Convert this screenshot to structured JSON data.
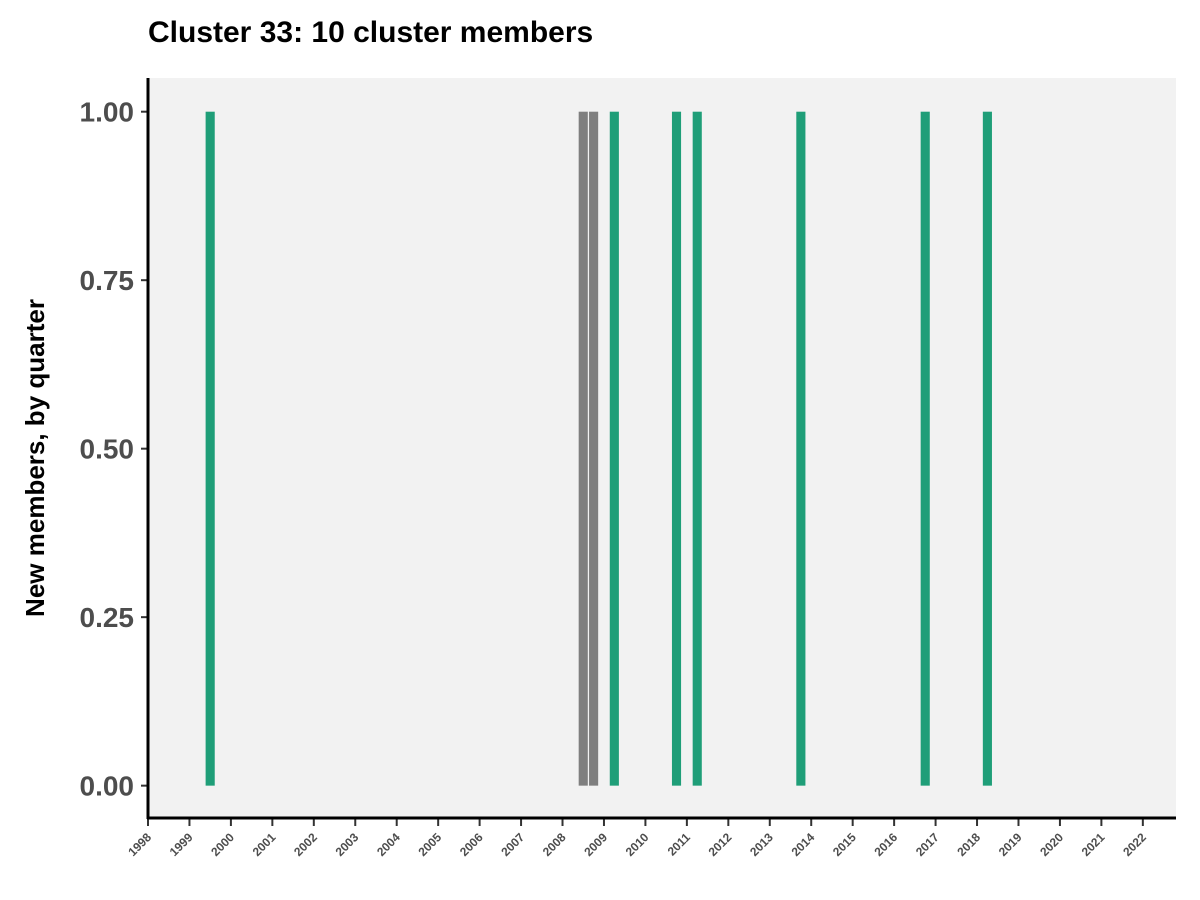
{
  "chart_data": {
    "type": "bar",
    "title": "Cluster 33: 10 cluster members",
    "xlabel": "",
    "ylabel": "New members, by quarter",
    "xlim": [
      1998.0,
      2022.8
    ],
    "ylim": [
      -0.048,
      1.05
    ],
    "y_ticks": [
      0.0,
      0.25,
      0.5,
      0.75,
      1.0
    ],
    "y_tick_labels": [
      "0.00",
      "0.25",
      "0.50",
      "0.75",
      "1.00"
    ],
    "x_ticks": [
      1998,
      1999,
      2000,
      2001,
      2002,
      2003,
      2004,
      2005,
      2006,
      2007,
      2008,
      2009,
      2010,
      2011,
      2012,
      2013,
      2014,
      2015,
      2016,
      2017,
      2018,
      2019,
      2020,
      2021,
      2022
    ],
    "x_tick_labels": [
      "1998",
      "1999",
      "2000",
      "2001",
      "2002",
      "2003",
      "2004",
      "2005",
      "2006",
      "2007",
      "2008",
      "2009",
      "2010",
      "2011",
      "2012",
      "2013",
      "2014",
      "2015",
      "2016",
      "2017",
      "2018",
      "2019",
      "2020",
      "2021",
      "2022"
    ],
    "bar_width_years": 0.22,
    "grid": false,
    "legend": "none",
    "panel_background": "#f2f2f2",
    "bars": [
      {
        "x": 1999.5,
        "value": 1,
        "color": "#1f9e78"
      },
      {
        "x": 2008.5,
        "value": 1,
        "color": "#7f7f7f"
      },
      {
        "x": 2008.75,
        "value": 1,
        "color": "#7f7f7f"
      },
      {
        "x": 2009.25,
        "value": 1,
        "color": "#1f9e78"
      },
      {
        "x": 2010.75,
        "value": 1,
        "color": "#1f9e78"
      },
      {
        "x": 2011.25,
        "value": 1,
        "color": "#1f9e78"
      },
      {
        "x": 2013.75,
        "value": 1,
        "color": "#1f9e78"
      },
      {
        "x": 2016.75,
        "value": 1,
        "color": "#1f9e78"
      },
      {
        "x": 2018.25,
        "value": 1,
        "color": "#1f9e78"
      }
    ]
  }
}
